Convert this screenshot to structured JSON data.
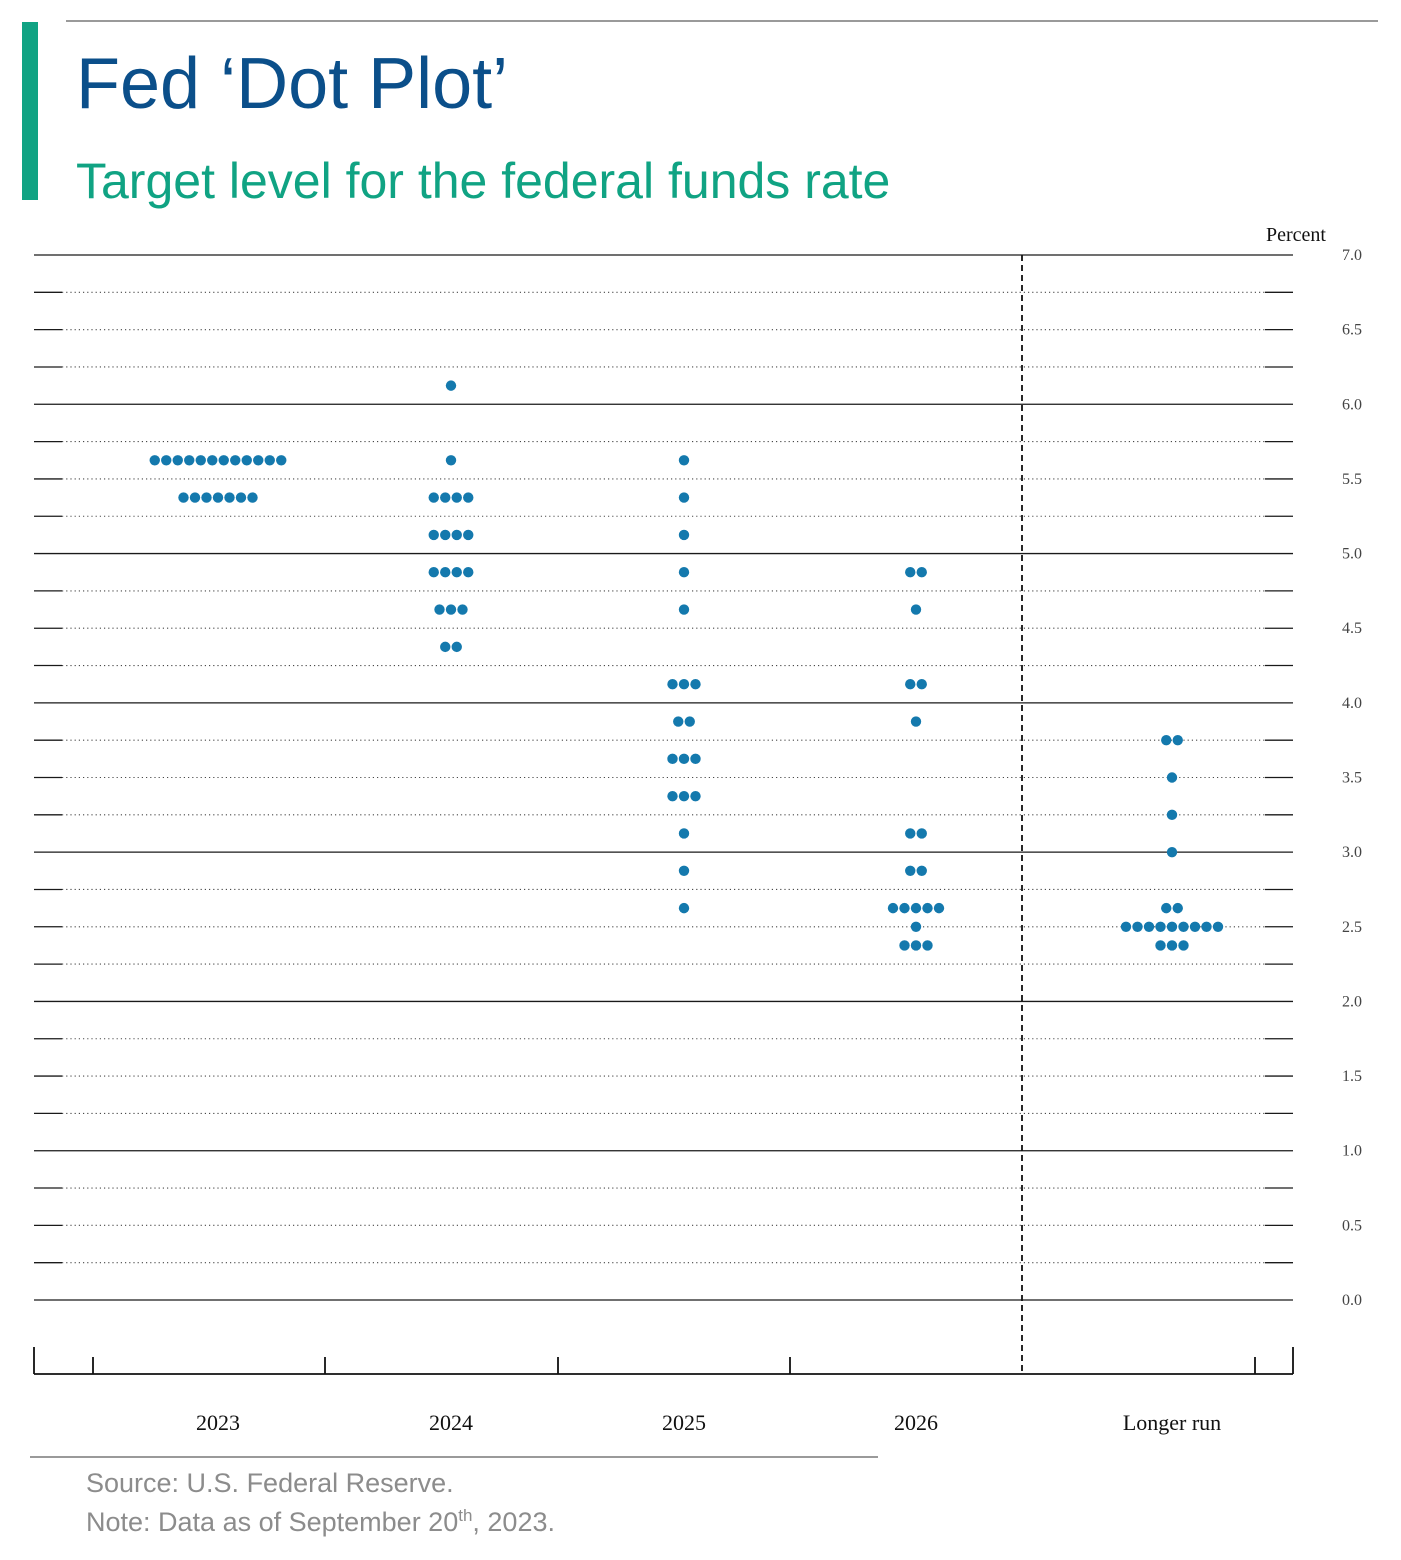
{
  "header": {
    "title": "Fed ‘Dot Plot’",
    "subtitle": "Target level for the federal funds rate"
  },
  "colors": {
    "accent": "#10a383",
    "title": "#0b4f8a",
    "dot": "#1479ad",
    "note": "#8c8c8c"
  },
  "chart_data": {
    "type": "scatter",
    "ylabel": "Percent",
    "xlabel": "",
    "ylim": [
      0,
      7
    ],
    "y_ticks": [
      "0.0",
      "0.5",
      "1.0",
      "1.5",
      "2.0",
      "2.5",
      "3.0",
      "3.5",
      "4.0",
      "4.5",
      "5.0",
      "5.5",
      "6.0",
      "6.5",
      "7.0"
    ],
    "gridlines": "dotted every 0.25, solid at whole numbers",
    "categories": [
      "2023",
      "2024",
      "2025",
      "2026",
      "Longer run"
    ],
    "separator_before": "Longer run",
    "series": [
      {
        "x": "2023",
        "points": [
          {
            "y": 5.625,
            "count": 12
          },
          {
            "y": 5.375,
            "count": 7
          }
        ]
      },
      {
        "x": "2024",
        "points": [
          {
            "y": 6.125,
            "count": 1
          },
          {
            "y": 5.625,
            "count": 1
          },
          {
            "y": 5.375,
            "count": 4
          },
          {
            "y": 5.125,
            "count": 4
          },
          {
            "y": 4.875,
            "count": 4
          },
          {
            "y": 4.625,
            "count": 3
          },
          {
            "y": 4.375,
            "count": 2
          }
        ]
      },
      {
        "x": "2025",
        "points": [
          {
            "y": 5.625,
            "count": 1
          },
          {
            "y": 5.375,
            "count": 1
          },
          {
            "y": 5.125,
            "count": 1
          },
          {
            "y": 4.875,
            "count": 1
          },
          {
            "y": 4.625,
            "count": 1
          },
          {
            "y": 4.125,
            "count": 3
          },
          {
            "y": 3.875,
            "count": 2
          },
          {
            "y": 3.625,
            "count": 3
          },
          {
            "y": 3.375,
            "count": 3
          },
          {
            "y": 3.125,
            "count": 1
          },
          {
            "y": 2.875,
            "count": 1
          },
          {
            "y": 2.625,
            "count": 1
          }
        ]
      },
      {
        "x": "2026",
        "points": [
          {
            "y": 4.875,
            "count": 2
          },
          {
            "y": 4.625,
            "count": 1
          },
          {
            "y": 4.125,
            "count": 2
          },
          {
            "y": 3.875,
            "count": 1
          },
          {
            "y": 3.125,
            "count": 2
          },
          {
            "y": 2.875,
            "count": 2
          },
          {
            "y": 2.625,
            "count": 5
          },
          {
            "y": 2.5,
            "count": 1
          },
          {
            "y": 2.375,
            "count": 3
          }
        ]
      },
      {
        "x": "Longer run",
        "points": [
          {
            "y": 3.75,
            "count": 2
          },
          {
            "y": 3.5,
            "count": 1
          },
          {
            "y": 3.25,
            "count": 1
          },
          {
            "y": 3.0,
            "count": 1
          },
          {
            "y": 2.625,
            "count": 2
          },
          {
            "y": 2.5,
            "count": 9
          },
          {
            "y": 2.375,
            "count": 3
          }
        ]
      }
    ]
  },
  "notes": {
    "source": "Source: U.S. Federal Reserve.",
    "date_prefix": "Note: Data as of September 20",
    "date_sup": "th",
    "date_suffix": ", 2023."
  }
}
